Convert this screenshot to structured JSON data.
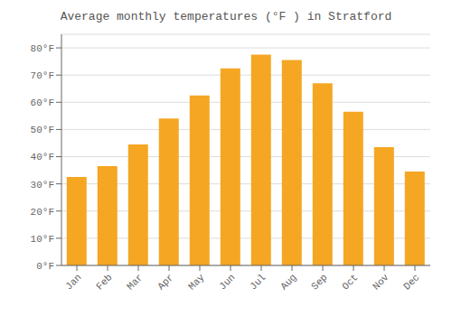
{
  "chart_data": {
    "type": "bar",
    "title": "Average monthly temperatures (°F ) in Stratford",
    "categories": [
      "Jan",
      "Feb",
      "Mar",
      "Apr",
      "May",
      "Jun",
      "Jul",
      "Aug",
      "Sep",
      "Oct",
      "Nov",
      "Dec"
    ],
    "values": [
      32.5,
      36.5,
      44.5,
      54.0,
      62.5,
      72.5,
      77.5,
      75.5,
      67.0,
      56.5,
      43.5,
      34.5
    ],
    "color": "#F5A623",
    "ylim": [
      0,
      85
    ],
    "yticks": [
      {
        "value": 0,
        "label": "0°F"
      },
      {
        "value": 10,
        "label": "10°F"
      },
      {
        "value": 20,
        "label": "20°F"
      },
      {
        "value": 30,
        "label": "30°F"
      },
      {
        "value": 40,
        "label": "40°F"
      },
      {
        "value": 50,
        "label": "50°F"
      },
      {
        "value": 60,
        "label": "60°F"
      },
      {
        "value": 70,
        "label": "70°F"
      },
      {
        "value": 80,
        "label": "80°F"
      }
    ],
    "grid": true
  }
}
